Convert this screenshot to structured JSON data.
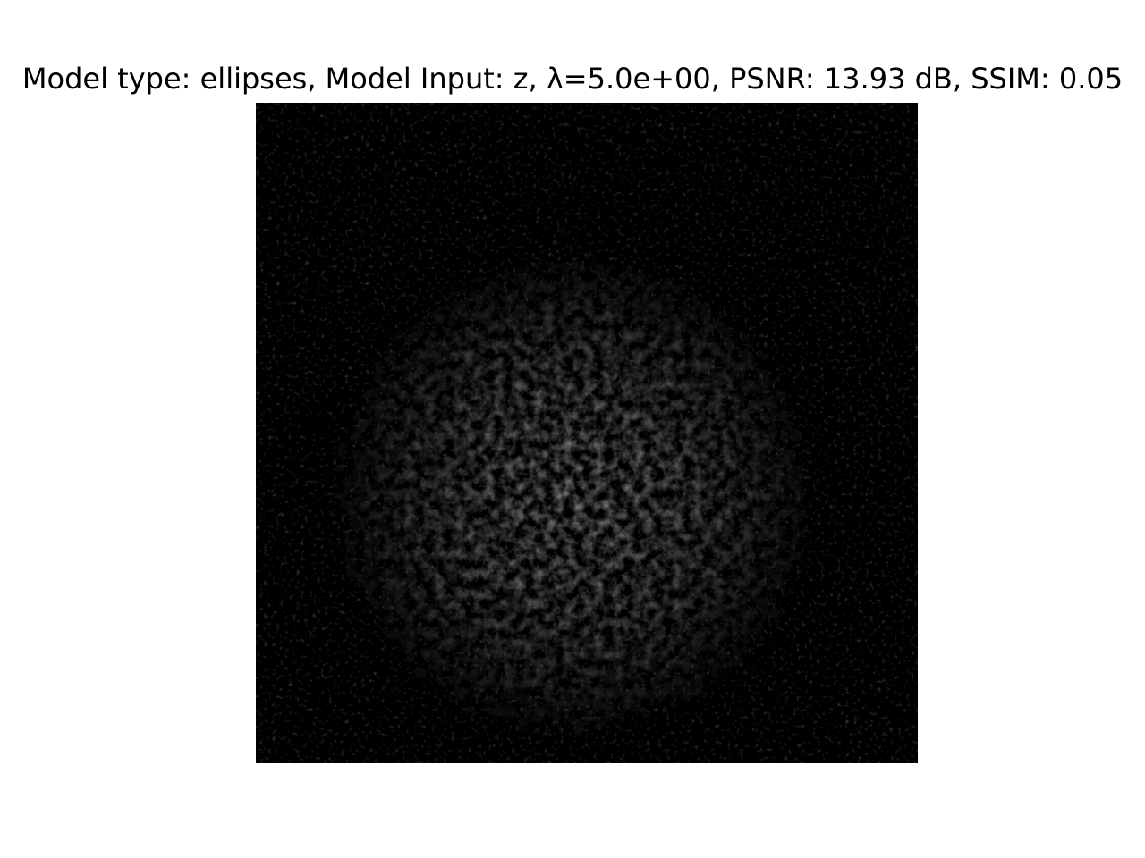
{
  "figure": {
    "title": "Model type: ellipses, Model Input: z, λ=5.0e+00, PSNR: 13.93 dB, SSIM: 0.05"
  },
  "image": {
    "colormap": "gray",
    "background_color": "#000000",
    "blob_color": "#8a8a8a"
  }
}
